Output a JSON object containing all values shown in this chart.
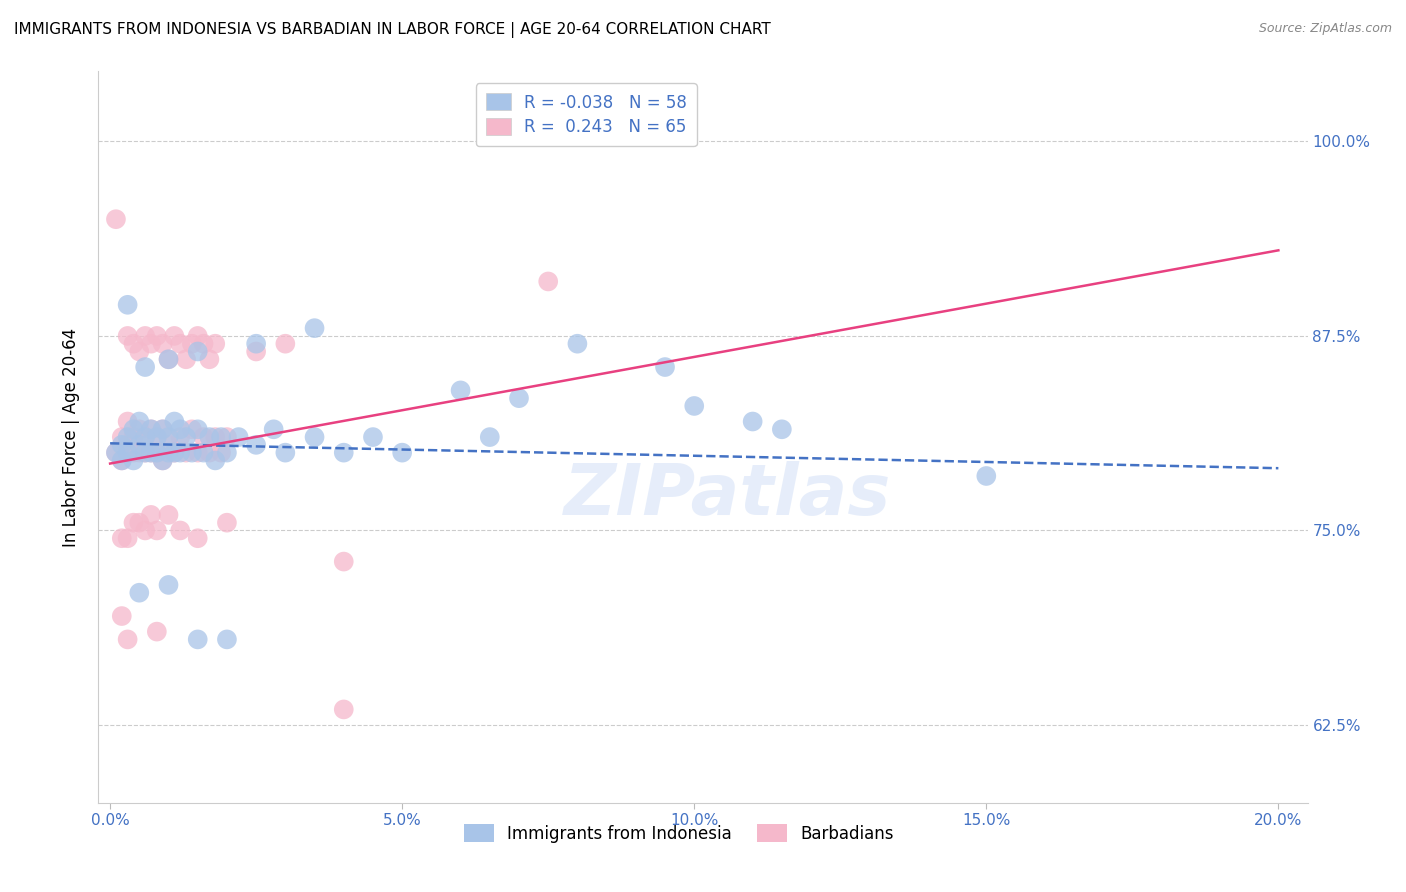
{
  "title": "IMMIGRANTS FROM INDONESIA VS BARBADIAN IN LABOR FORCE | AGE 20-64 CORRELATION CHART",
  "source": "Source: ZipAtlas.com",
  "ylabel": "In Labor Force | Age 20-64",
  "ylabel_ticks": [
    "62.5%",
    "75.0%",
    "87.5%",
    "100.0%"
  ],
  "ylabel_tick_vals": [
    0.625,
    0.75,
    0.875,
    1.0
  ],
  "xlabel_ticks": [
    "0.0%",
    "5.0%",
    "10.0%",
    "15.0%",
    "20.0%"
  ],
  "xlabel_tick_vals": [
    0.0,
    0.05,
    0.1,
    0.15,
    0.2
  ],
  "xlim": [
    -0.002,
    0.205
  ],
  "ylim": [
    0.575,
    1.045
  ],
  "scatter_blue_color": "#a8c4e8",
  "scatter_pink_color": "#f5b8cb",
  "trend_blue_color": "#4472c4",
  "trend_pink_color": "#e84080",
  "watermark": "ZIPatlas",
  "blue_trend_x": [
    0.0,
    0.2
  ],
  "blue_trend_y": [
    0.806,
    0.79
  ],
  "pink_trend_x": [
    0.0,
    0.2
  ],
  "pink_trend_y": [
    0.793,
    0.93
  ],
  "blue_points": [
    [
      0.001,
      0.8
    ],
    [
      0.002,
      0.805
    ],
    [
      0.002,
      0.795
    ],
    [
      0.003,
      0.81
    ],
    [
      0.003,
      0.8
    ],
    [
      0.004,
      0.815
    ],
    [
      0.004,
      0.795
    ],
    [
      0.005,
      0.82
    ],
    [
      0.005,
      0.805
    ],
    [
      0.006,
      0.81
    ],
    [
      0.006,
      0.8
    ],
    [
      0.007,
      0.815
    ],
    [
      0.007,
      0.8
    ],
    [
      0.008,
      0.81
    ],
    [
      0.008,
      0.8
    ],
    [
      0.009,
      0.815
    ],
    [
      0.009,
      0.795
    ],
    [
      0.01,
      0.81
    ],
    [
      0.01,
      0.8
    ],
    [
      0.011,
      0.82
    ],
    [
      0.011,
      0.8
    ],
    [
      0.012,
      0.815
    ],
    [
      0.012,
      0.8
    ],
    [
      0.013,
      0.81
    ],
    [
      0.014,
      0.8
    ],
    [
      0.015,
      0.815
    ],
    [
      0.016,
      0.8
    ],
    [
      0.017,
      0.81
    ],
    [
      0.018,
      0.795
    ],
    [
      0.019,
      0.81
    ],
    [
      0.02,
      0.8
    ],
    [
      0.022,
      0.81
    ],
    [
      0.025,
      0.805
    ],
    [
      0.028,
      0.815
    ],
    [
      0.03,
      0.8
    ],
    [
      0.035,
      0.81
    ],
    [
      0.04,
      0.8
    ],
    [
      0.045,
      0.81
    ],
    [
      0.05,
      0.8
    ],
    [
      0.06,
      0.84
    ],
    [
      0.065,
      0.81
    ],
    [
      0.07,
      0.835
    ],
    [
      0.003,
      0.895
    ],
    [
      0.006,
      0.855
    ],
    [
      0.01,
      0.86
    ],
    [
      0.015,
      0.865
    ],
    [
      0.025,
      0.87
    ],
    [
      0.035,
      0.88
    ],
    [
      0.08,
      0.87
    ],
    [
      0.095,
      0.855
    ],
    [
      0.1,
      0.83
    ],
    [
      0.11,
      0.82
    ],
    [
      0.115,
      0.815
    ],
    [
      0.005,
      0.71
    ],
    [
      0.01,
      0.715
    ],
    [
      0.015,
      0.68
    ],
    [
      0.02,
      0.68
    ],
    [
      0.15,
      0.785
    ]
  ],
  "pink_points": [
    [
      0.001,
      0.8
    ],
    [
      0.002,
      0.81
    ],
    [
      0.002,
      0.795
    ],
    [
      0.003,
      0.82
    ],
    [
      0.003,
      0.805
    ],
    [
      0.004,
      0.81
    ],
    [
      0.004,
      0.8
    ],
    [
      0.005,
      0.815
    ],
    [
      0.005,
      0.8
    ],
    [
      0.006,
      0.81
    ],
    [
      0.006,
      0.8
    ],
    [
      0.007,
      0.815
    ],
    [
      0.007,
      0.8
    ],
    [
      0.008,
      0.81
    ],
    [
      0.008,
      0.8
    ],
    [
      0.009,
      0.815
    ],
    [
      0.009,
      0.795
    ],
    [
      0.01,
      0.805
    ],
    [
      0.011,
      0.8
    ],
    [
      0.012,
      0.81
    ],
    [
      0.013,
      0.8
    ],
    [
      0.014,
      0.815
    ],
    [
      0.015,
      0.8
    ],
    [
      0.016,
      0.81
    ],
    [
      0.017,
      0.8
    ],
    [
      0.018,
      0.81
    ],
    [
      0.019,
      0.8
    ],
    [
      0.02,
      0.81
    ],
    [
      0.003,
      0.875
    ],
    [
      0.004,
      0.87
    ],
    [
      0.005,
      0.865
    ],
    [
      0.006,
      0.875
    ],
    [
      0.007,
      0.87
    ],
    [
      0.008,
      0.875
    ],
    [
      0.009,
      0.87
    ],
    [
      0.01,
      0.86
    ],
    [
      0.011,
      0.875
    ],
    [
      0.012,
      0.87
    ],
    [
      0.013,
      0.86
    ],
    [
      0.014,
      0.87
    ],
    [
      0.015,
      0.875
    ],
    [
      0.016,
      0.87
    ],
    [
      0.017,
      0.86
    ],
    [
      0.018,
      0.87
    ],
    [
      0.001,
      0.95
    ],
    [
      0.025,
      0.865
    ],
    [
      0.03,
      0.87
    ],
    [
      0.04,
      0.73
    ],
    [
      0.075,
      0.91
    ],
    [
      0.002,
      0.745
    ],
    [
      0.003,
      0.745
    ],
    [
      0.004,
      0.755
    ],
    [
      0.005,
      0.755
    ],
    [
      0.006,
      0.75
    ],
    [
      0.007,
      0.76
    ],
    [
      0.008,
      0.75
    ],
    [
      0.01,
      0.76
    ],
    [
      0.012,
      0.75
    ],
    [
      0.015,
      0.745
    ],
    [
      0.02,
      0.755
    ],
    [
      0.002,
      0.695
    ],
    [
      0.003,
      0.68
    ],
    [
      0.008,
      0.685
    ],
    [
      0.04,
      0.635
    ]
  ]
}
